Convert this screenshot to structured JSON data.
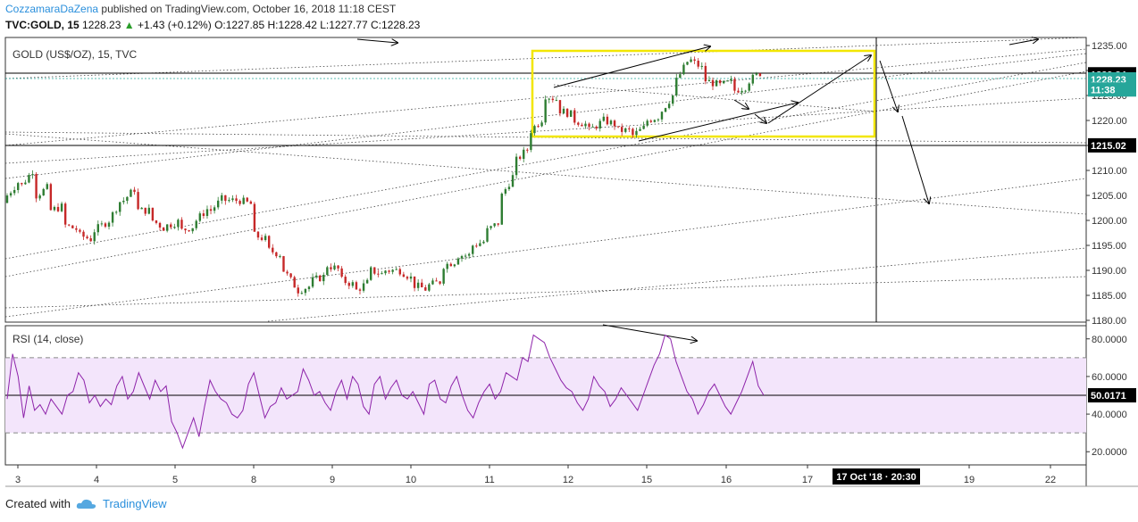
{
  "header": {
    "author": "CozzamaraDaZena",
    "published_text": "published on TradingView.com, October 16, 2018 11:18 CEST",
    "symbol": "TVC:GOLD, 15",
    "last": "1228.23",
    "change": "+1.43 (+0.12%)",
    "open_label": "O:",
    "open": "1227.85",
    "high_label": "H:",
    "high": "1228.42",
    "low_label": "L:",
    "low": "1227.77",
    "close_label": "C:",
    "close": "1228.23"
  },
  "footer": {
    "created_with": "Created with",
    "brand": "TradingView"
  },
  "chart_data": {
    "type": "candlestick",
    "title": "GOLD (US$/OZ), 15, TVC",
    "price_axis": {
      "ticks": [
        "1235.00",
        "1230.00",
        "1225.00",
        "1220.00",
        "1215.00",
        "1210.00",
        "1205.00",
        "1200.00",
        "1195.00",
        "1190.00",
        "1185.00",
        "1180.00"
      ],
      "ylim": [
        1180,
        1235
      ]
    },
    "price_labels": [
      {
        "value": 1229.24,
        "text": "1229.24",
        "style": "black"
      },
      {
        "value": 1228.23,
        "text": "1228.23",
        "style": "green"
      },
      {
        "value": 1226.2,
        "text": "11:38",
        "style": "green"
      },
      {
        "value": 1215.02,
        "text": "1215.02",
        "style": "black"
      }
    ],
    "time_axis": {
      "ticks": [
        "3",
        "4",
        "5",
        "8",
        "9",
        "10",
        "11",
        "12",
        "15",
        "16",
        "17",
        "19",
        "22"
      ],
      "crosshair_label": "17 Oct '18 · 20:30"
    },
    "price_path": [
      [
        1203.5,
        1205
      ],
      [
        1208.5,
        1207
      ],
      [
        1211,
        1205
      ],
      [
        1207,
        1202
      ],
      [
        1203,
        1199
      ],
      [
        1198,
        1197
      ],
      [
        1196,
        1198
      ],
      [
        1200,
        1200
      ],
      [
        1205,
        1204
      ],
      [
        1207,
        1202
      ],
      [
        1202,
        1200
      ],
      [
        1198,
        1199
      ],
      [
        1200,
        1198
      ],
      [
        1199,
        1200
      ],
      [
        1203,
        1202
      ],
      [
        1205,
        1204
      ],
      [
        1204,
        1204
      ],
      [
        1203,
        1197
      ],
      [
        1196,
        1194
      ],
      [
        1193,
        1190
      ],
      [
        1186,
        1186
      ],
      [
        1187,
        1188
      ],
      [
        1189,
        1191
      ],
      [
        1190,
        1188
      ],
      [
        1187,
        1186
      ],
      [
        1188,
        1190
      ],
      [
        1189,
        1190
      ],
      [
        1190,
        1190
      ],
      [
        1188,
        1187
      ],
      [
        1186,
        1187
      ],
      [
        1188,
        1191
      ],
      [
        1192,
        1193
      ],
      [
        1193,
        1195
      ],
      [
        1196,
        1198
      ],
      [
        1200,
        1205
      ],
      [
        1210,
        1212
      ],
      [
        1215,
        1218
      ],
      [
        1221,
        1225
      ],
      [
        1224,
        1222
      ],
      [
        1221,
        1220
      ],
      [
        1219,
        1218
      ],
      [
        1220,
        1220
      ],
      [
        1219,
        1218
      ],
      [
        1218,
        1217
      ],
      [
        1219,
        1220
      ],
      [
        1221,
        1222
      ],
      [
        1226,
        1228
      ],
      [
        1233,
        1232
      ],
      [
        1230,
        1228
      ],
      [
        1227,
        1227
      ],
      [
        1228,
        1226
      ],
      [
        1227,
        1228
      ],
      [
        1230,
        1228
      ]
    ],
    "rsi": {
      "label": "RSI (14, close)",
      "value_label": "50.0171",
      "ticks": [
        "80.0000",
        "60.0000",
        "40.0000",
        "20.0000"
      ],
      "ylim": [
        13,
        87
      ],
      "upper_band": 70,
      "lower_band": 30,
      "mid": 50,
      "values": [
        48,
        72,
        60,
        38,
        55,
        42,
        45,
        40,
        48,
        44,
        40,
        50,
        52,
        62,
        58,
        46,
        50,
        44,
        48,
        45,
        55,
        60,
        48,
        52,
        62,
        55,
        48,
        58,
        52,
        55,
        36,
        30,
        22,
        30,
        38,
        28,
        44,
        58,
        52,
        48,
        46,
        40,
        38,
        42,
        56,
        62,
        50,
        38,
        44,
        46,
        54,
        48,
        50,
        52,
        64,
        58,
        50,
        52,
        46,
        42,
        52,
        58,
        48,
        60,
        56,
        44,
        40,
        56,
        60,
        48,
        54,
        58,
        50,
        48,
        52,
        46,
        40,
        56,
        58,
        48,
        46,
        55,
        60,
        50,
        42,
        38,
        46,
        52,
        56,
        48,
        52,
        62,
        60,
        58,
        70,
        68,
        82,
        80,
        78,
        70,
        64,
        58,
        54,
        52,
        46,
        42,
        48,
        60,
        55,
        52,
        44,
        48,
        54,
        50,
        46,
        42,
        50,
        58,
        66,
        72,
        82,
        80,
        68,
        60,
        52,
        48,
        40,
        45,
        52,
        56,
        50,
        44,
        40,
        46,
        52,
        60,
        68,
        55,
        50
      ]
    }
  }
}
